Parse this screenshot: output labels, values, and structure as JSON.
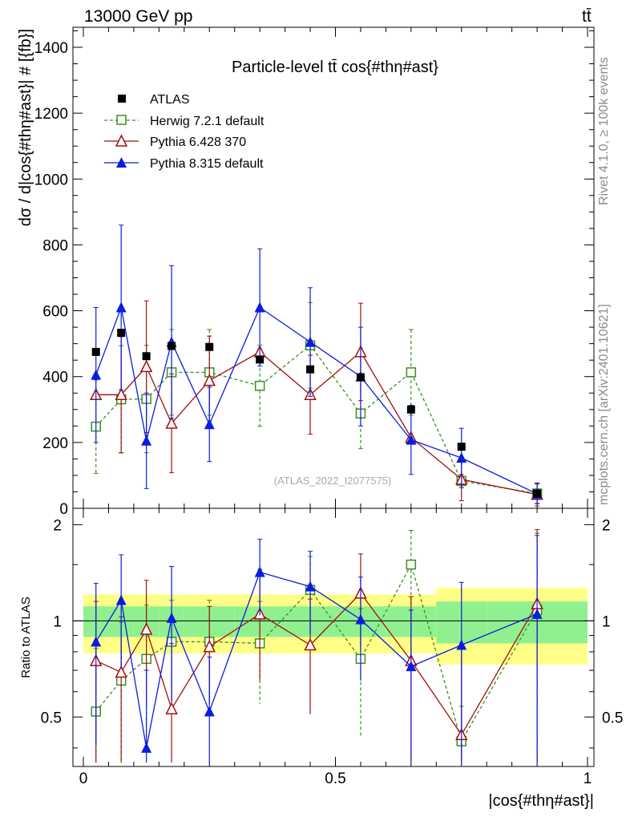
{
  "header": {
    "left": "13000 GeV pp",
    "right": "tt̄"
  },
  "side_labels": {
    "rivet": "Rivet 4.1.0, ≥ 100k events",
    "mcplots": "mcplots.cern.ch [arXiv:2401.10621]"
  },
  "chart_data": {
    "type": "line",
    "title": "Particle-level tt̄ cos{#thη#ast}",
    "xlabel": "|cos{#thη#ast}|",
    "ylabel": "dσ / d|cos{#thη#ast}| # [{fb}]",
    "ratio_ylabel": "Ratio to ATLAS",
    "watermark": "(ATLAS_2022_I2077575)",
    "xlim": [
      0,
      1
    ],
    "ylim": [
      0,
      1400
    ],
    "ratio_ylim": [
      0.35,
      2.25
    ],
    "x_ticks": [
      "0",
      "0.5",
      "1"
    ],
    "y_ticks": [
      "0",
      "200",
      "400",
      "600",
      "800",
      "1000",
      "1200",
      "1400"
    ],
    "ratio_ticks": [
      "0.5",
      "1",
      "2"
    ],
    "x": [
      0.025,
      0.075,
      0.125,
      0.175,
      0.25,
      0.35,
      0.45,
      0.55,
      0.65,
      0.75,
      0.9
    ],
    "bin_edges": [
      0,
      0.05,
      0.1,
      0.15,
      0.2,
      0.3,
      0.4,
      0.5,
      0.6,
      0.7,
      0.8,
      1.0
    ],
    "series": [
      {
        "name": "ATLAS",
        "color": "#000000",
        "marker": "square",
        "values": [
          475,
          533,
          462,
          493,
          490,
          452,
          422,
          398,
          300,
          187,
          45
        ]
      },
      {
        "name": "Herwig 7.2.1 default",
        "color": "#3a8f1e",
        "marker": "open-square",
        "dashed": true,
        "values": [
          248,
          331,
          332,
          413,
          413,
          372,
          495,
          288,
          413,
          83,
          45
        ],
        "err": [
          142,
          163,
          163,
          130,
          130,
          123,
          130,
          107,
          130,
          20,
          30
        ],
        "ratio": [
          0.52,
          0.65,
          0.76,
          0.86,
          0.86,
          0.85,
          1.25,
          0.76,
          1.5,
          0.42,
          1.08
        ],
        "ratio_err": [
          0.3,
          0.34,
          0.36,
          0.3,
          0.3,
          0.3,
          0.34,
          0.33,
          0.42,
          0.12,
          0.8
        ]
      },
      {
        "name": "Pythia 6.428 370",
        "color": "#a01010",
        "marker": "open-triangle",
        "values": [
          345,
          345,
          430,
          258,
          388,
          475,
          345,
          475,
          215,
          88,
          42
        ],
        "err": [
          0,
          176,
          200,
          150,
          135,
          0,
          120,
          148,
          0,
          65,
          35
        ],
        "ratio": [
          0.75,
          0.69,
          0.94,
          0.53,
          0.83,
          1.05,
          0.84,
          1.22,
          0.75,
          0.44,
          1.13
        ],
        "ratio_err": [
          0.4,
          0.34,
          0.4,
          0.32,
          0.28,
          0.4,
          0.33,
          0.4,
          0.44,
          0.4,
          0.8
        ]
      },
      {
        "name": "Pythia 8.315 default",
        "color": "#0a1ce0",
        "marker": "triangle",
        "values": [
          405,
          610,
          205,
          505,
          255,
          610,
          505,
          400,
          208,
          153,
          44
        ],
        "err": [
          205,
          250,
          145,
          232,
          113,
          178,
          165,
          150,
          105,
          90,
          30
        ],
        "ratio": [
          0.86,
          1.16,
          0.4,
          1.02,
          0.52,
          1.42,
          1.28,
          1.01,
          0.72,
          0.84,
          1.05
        ],
        "ratio_err": [
          0.45,
          0.45,
          0.3,
          0.46,
          0.25,
          0.38,
          0.37,
          0.36,
          0.36,
          0.48,
          0.8
        ]
      }
    ],
    "atlas_band_outer": [
      0.21,
      0.21,
      0.21,
      0.21,
      0.21,
      0.21,
      0.21,
      0.21,
      0.21,
      0.27,
      0.27
    ],
    "atlas_band_inner": [
      0.11,
      0.11,
      0.11,
      0.11,
      0.11,
      0.11,
      0.11,
      0.11,
      0.11,
      0.15,
      0.15
    ]
  }
}
